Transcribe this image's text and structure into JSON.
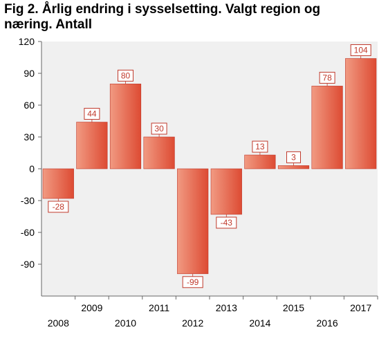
{
  "title": "Fig 2. Årlig endring i sysselsetting. Valgt region og næring. Antall",
  "colors": {
    "bar_light": "#f19a82",
    "bar_dark": "#dd4b33",
    "bar_edge": "#c0392b",
    "label_text": "#c0392b",
    "plot_bg": "#f0f0f0",
    "axis": "#666666"
  },
  "chart_data": {
    "type": "bar",
    "title": "Fig 2. Årlig endring i sysselsetting. Valgt region og næring. Antall",
    "xlabel": "",
    "ylabel": "",
    "categories": [
      "2008",
      "2009",
      "2010",
      "2011",
      "2012",
      "2013",
      "2014",
      "2015",
      "2016",
      "2017"
    ],
    "values": [
      -28,
      44,
      80,
      30,
      -99,
      -43,
      13,
      3,
      78,
      104
    ],
    "ylim": [
      -120,
      120
    ],
    "yticks": [
      120,
      90,
      60,
      30,
      0,
      -30,
      -60,
      -90
    ],
    "grid": false,
    "legend": "none",
    "data_labels": true
  }
}
